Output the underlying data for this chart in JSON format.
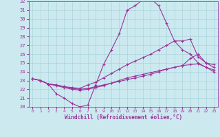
{
  "title": "",
  "xlabel": "Windchill (Refroidissement éolien,°C)",
  "ylabel": "",
  "xlim": [
    -0.5,
    23.5
  ],
  "ylim": [
    20,
    32
  ],
  "xticks": [
    0,
    1,
    2,
    3,
    4,
    5,
    6,
    7,
    8,
    9,
    10,
    11,
    12,
    13,
    14,
    15,
    16,
    17,
    18,
    19,
    20,
    21,
    22,
    23
  ],
  "yticks": [
    20,
    21,
    22,
    23,
    24,
    25,
    26,
    27,
    28,
    29,
    30,
    31,
    32
  ],
  "bg_color": "#cce9f0",
  "grid_color": "#aad4dc",
  "line_color": "#993399",
  "curve1_x": [
    0,
    1,
    2,
    3,
    4,
    5,
    6,
    7,
    8,
    9,
    10,
    11,
    12,
    13,
    14,
    15,
    16,
    17,
    18,
    19,
    20,
    21,
    22,
    23
  ],
  "curve1_y": [
    23.2,
    23.0,
    22.6,
    21.5,
    21.0,
    20.4,
    20.0,
    20.2,
    22.5,
    24.8,
    26.5,
    28.3,
    31.0,
    31.5,
    32.2,
    32.3,
    31.5,
    29.5,
    27.5,
    26.5,
    26.0,
    25.0,
    24.5,
    24.0
  ],
  "curve2_x": [
    0,
    1,
    2,
    3,
    4,
    5,
    6,
    7,
    8,
    9,
    10,
    11,
    12,
    13,
    14,
    15,
    16,
    17,
    18,
    19,
    20,
    21,
    22,
    23
  ],
  "curve2_y": [
    23.2,
    23.0,
    22.6,
    22.5,
    22.3,
    22.2,
    22.1,
    22.5,
    22.8,
    23.3,
    23.8,
    24.3,
    24.8,
    25.2,
    25.6,
    26.0,
    26.5,
    27.0,
    27.5,
    27.5,
    27.7,
    25.7,
    25.0,
    24.8
  ],
  "curve3_x": [
    0,
    1,
    2,
    3,
    4,
    5,
    6,
    7,
    8,
    9,
    10,
    11,
    12,
    13,
    14,
    15,
    16,
    17,
    18,
    19,
    20,
    21,
    22,
    23
  ],
  "curve3_y": [
    23.2,
    23.0,
    22.6,
    22.5,
    22.3,
    22.1,
    22.0,
    22.1,
    22.3,
    22.5,
    22.7,
    22.9,
    23.1,
    23.3,
    23.5,
    23.7,
    24.0,
    24.3,
    24.5,
    24.7,
    25.5,
    26.0,
    25.0,
    24.5
  ],
  "curve4_x": [
    0,
    1,
    2,
    3,
    4,
    5,
    6,
    7,
    8,
    9,
    10,
    11,
    12,
    13,
    14,
    15,
    16,
    17,
    18,
    19,
    20,
    21,
    22,
    23
  ],
  "curve4_y": [
    23.2,
    23.0,
    22.6,
    22.4,
    22.2,
    22.0,
    21.9,
    22.0,
    22.2,
    22.4,
    22.7,
    23.0,
    23.3,
    23.5,
    23.7,
    23.9,
    24.1,
    24.3,
    24.5,
    24.7,
    24.8,
    24.9,
    24.5,
    24.2
  ]
}
